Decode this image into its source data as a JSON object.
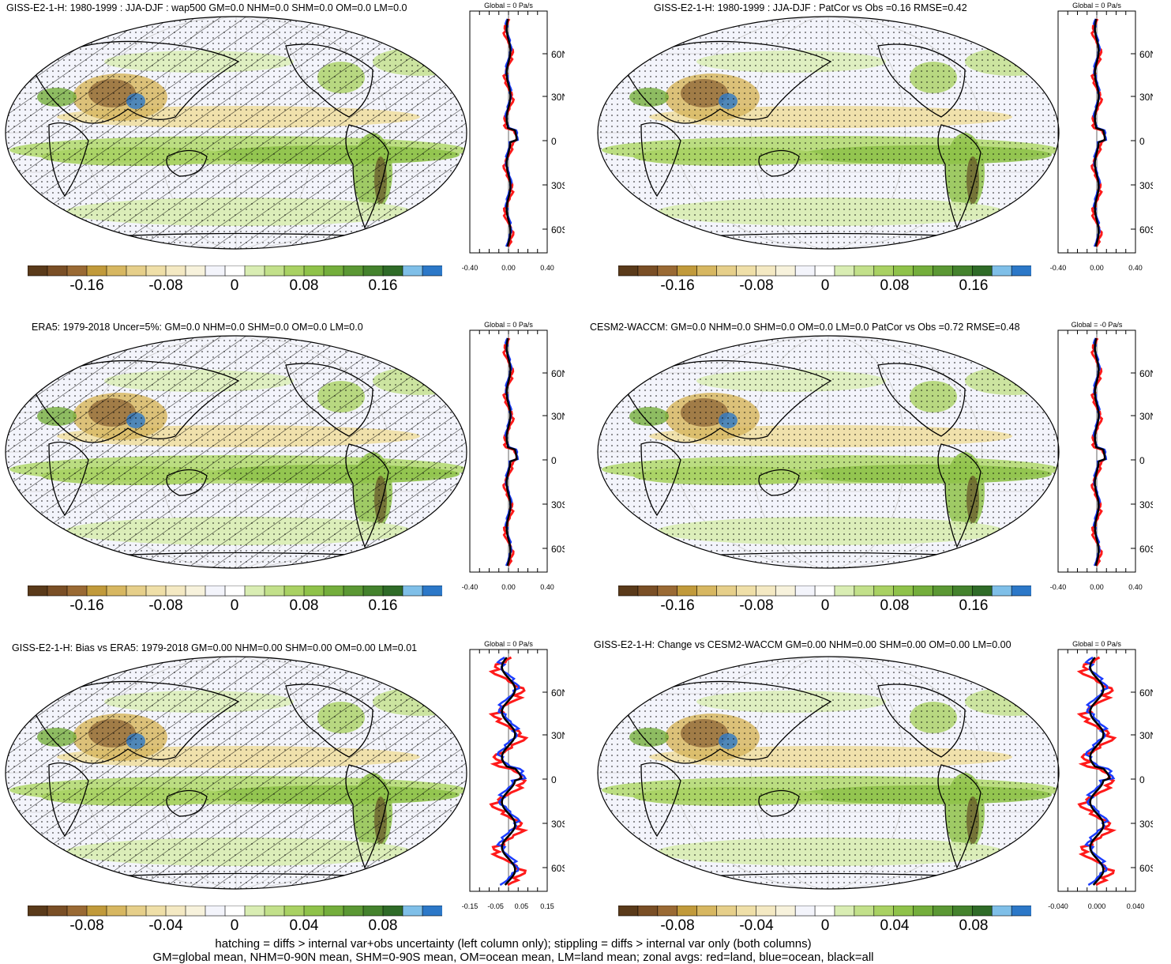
{
  "panels": [
    {
      "title": "GISS-E2-1-H: 1980-1999 : JJA-DJF : wap500 GM=0.0 NHM=0.0 SHM=0.0 OM=0.0 LM=0.0",
      "zonal_header": "Global = 0 Pa/s",
      "zonal_xticks": [
        "-0.40",
        "0.00",
        "0.40"
      ],
      "colorbar_labels": [
        "-0.16",
        "-0.08",
        "0",
        "0.08",
        "0.16"
      ],
      "hatched": true
    },
    {
      "title": "GISS-E2-1-H: 1980-1999 : JJA-DJF : PatCor vs Obs =0.16 RMSE=0.42",
      "zonal_header": "Global = 0 Pa/s",
      "zonal_xticks": [
        "-0.40",
        "0.00",
        "0.40"
      ],
      "colorbar_labels": [
        "-0.16",
        "-0.08",
        "0",
        "0.08",
        "0.16"
      ],
      "hatched": false
    },
    {
      "title": "ERA5: 1979-2018 Uncer=5%: GM=0.0 NHM=0.0 SHM=0.0 OM=0.0 LM=0.0",
      "zonal_header": "Global = 0 Pa/s",
      "zonal_xticks": [
        "-0.40",
        "0.00",
        "0.40"
      ],
      "colorbar_labels": [
        "-0.16",
        "-0.08",
        "0",
        "0.08",
        "0.16"
      ],
      "hatched": true
    },
    {
      "title": "CESM2-WACCM: GM=0.0 NHM=0.0 SHM=0.0 OM=0.0 LM=0.0 PatCor vs Obs =0.72 RMSE=0.48",
      "zonal_header": "Global = -0 Pa/s",
      "zonal_xticks": [
        "-0.40",
        "0.00",
        "0.40"
      ],
      "colorbar_labels": [
        "-0.16",
        "-0.08",
        "0",
        "0.08",
        "0.16"
      ],
      "hatched": false
    },
    {
      "title": "GISS-E2-1-H: Bias vs ERA5: 1979-2018 GM=0.00 NHM=0.00 SHM=0.00 OM=0.00 LM=0.01",
      "zonal_header": "Global = 0 Pa/s",
      "zonal_xticks": [
        "-0.15",
        "-0.05",
        "0.05",
        "0.15"
      ],
      "colorbar_labels": [
        "-0.08",
        "-0.04",
        "0",
        "0.04",
        "0.08"
      ],
      "hatched": true
    },
    {
      "title": "GISS-E2-1-H: Change vs CESM2-WACCM GM=0.00 NHM=0.00 SHM=0.00 OM=0.00 LM=0.00",
      "zonal_header": "Global = 0 Pa/s",
      "zonal_xticks": [
        "-0.040",
        "0.000",
        "0.040"
      ],
      "colorbar_labels": [
        "-0.08",
        "-0.04",
        "0",
        "0.04",
        "0.08"
      ],
      "hatched": false
    }
  ],
  "lat_ticks": [
    "60N",
    "30N",
    "0",
    "30S",
    "60S"
  ],
  "footer": {
    "line1": "hatching = diffs > internal var+obs uncertainty (left column only); stippling = diffs > internal var only (both columns)",
    "line2": "GM=global mean, NHM=0-90N mean, SHM=0-90S mean, OM=ocean mean, LM=land mean; zonal avgs: red=land, blue=ocean, black=all"
  },
  "colors": {
    "palette": [
      "#5a3a1a",
      "#7a4f26",
      "#9a6a34",
      "#c19a3b",
      "#d7b761",
      "#e6cf8a",
      "#efdfa8",
      "#f4e9c3",
      "#f7f2dc",
      "#f3f4fb",
      "#ffffff",
      "#d9edb3",
      "#c2e08a",
      "#a9d163",
      "#8fc24a",
      "#74ae3c",
      "#5b9834",
      "#44822d",
      "#2f6b28",
      "#7fbfe8",
      "#2c78c8"
    ],
    "land_line": "#ff1a1a",
    "ocean_line": "#1a3cff",
    "all_line": "#000000"
  },
  "icons": [
    "robinson-map",
    "zonal-mean-profile",
    "colorbar"
  ]
}
